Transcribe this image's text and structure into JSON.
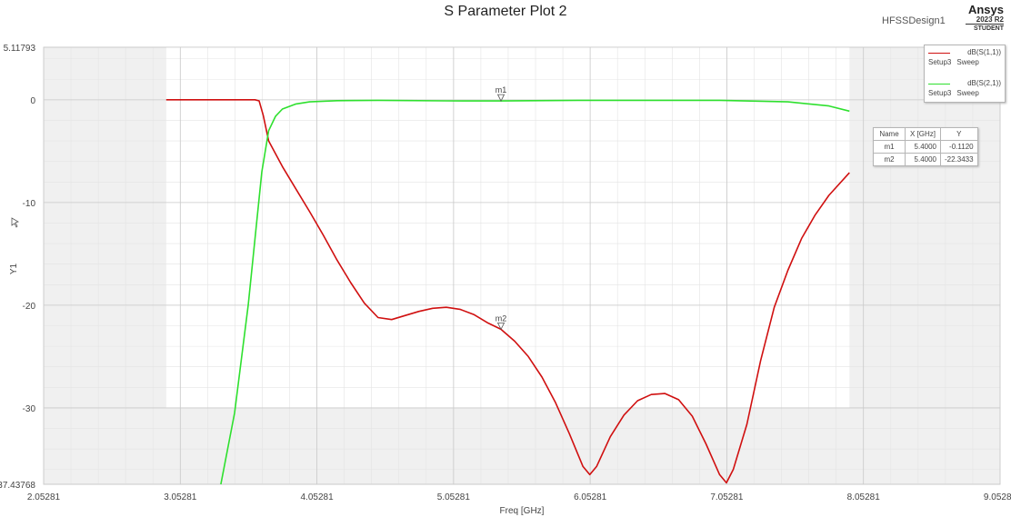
{
  "header": {
    "title": "S Parameter Plot 2",
    "design": "HFSSDesign1",
    "brand": "Ansys",
    "version": "2023 R2",
    "edition": "STUDENT"
  },
  "chart_data": {
    "type": "line",
    "title": "S Parameter Plot 2",
    "xlabel": "Freq [GHz]",
    "ylabel": "Y1",
    "xlim": [
      2.05281,
      9.05281
    ],
    "ylim": [
      -37.43768,
      5.11793
    ],
    "x_ticks": [
      "2.05281",
      "3.05281",
      "4.05281",
      "5.05281",
      "6.05281",
      "7.05281",
      "8.05281",
      "9.05281"
    ],
    "y_ticks": [
      "5.11793",
      "0",
      "-10",
      "-20",
      "-30",
      "-37.43768"
    ],
    "grid": true,
    "legend_position": "top-right",
    "series": [
      {
        "name": "dB(S(1,1))",
        "setup": "Setup3",
        "sweep": "Sweep",
        "color": "#d01010",
        "x": [
          2.95,
          3.2,
          3.4,
          3.6,
          3.63,
          3.66,
          3.7,
          3.8,
          3.9,
          4.0,
          4.1,
          4.2,
          4.3,
          4.4,
          4.5,
          4.6,
          4.7,
          4.8,
          4.9,
          5.0,
          5.1,
          5.2,
          5.3,
          5.4,
          5.5,
          5.6,
          5.7,
          5.8,
          5.9,
          6.0,
          6.05,
          6.1,
          6.2,
          6.3,
          6.4,
          6.5,
          6.6,
          6.7,
          6.8,
          6.9,
          7.0,
          7.05,
          7.1,
          7.2,
          7.3,
          7.4,
          7.5,
          7.6,
          7.7,
          7.8,
          7.95
        ],
        "y": [
          0,
          0,
          0,
          0,
          -0.1,
          -1.5,
          -4.0,
          -6.5,
          -8.7,
          -10.9,
          -13.2,
          -15.6,
          -17.8,
          -19.8,
          -21.2,
          -21.4,
          -21.0,
          -20.6,
          -20.3,
          -20.2,
          -20.4,
          -20.9,
          -21.7,
          -22.34,
          -23.5,
          -25.0,
          -27.0,
          -29.5,
          -32.5,
          -35.7,
          -36.5,
          -35.7,
          -32.8,
          -30.7,
          -29.3,
          -28.7,
          -28.6,
          -29.2,
          -30.8,
          -33.5,
          -36.5,
          -37.3,
          -36.0,
          -31.6,
          -25.4,
          -20.2,
          -16.6,
          -13.5,
          -11.2,
          -9.3,
          -7.1
        ]
      },
      {
        "name": "dB(S(2,1))",
        "setup": "Setup3",
        "sweep": "Sweep",
        "color": "#2ee02e",
        "x": [
          3.35,
          3.45,
          3.55,
          3.6,
          3.65,
          3.7,
          3.75,
          3.8,
          3.9,
          4.0,
          4.2,
          4.5,
          5.0,
          5.4,
          6.0,
          6.5,
          7.0,
          7.5,
          7.8,
          7.95
        ],
        "y": [
          -37.43768,
          -30.5,
          -20.0,
          -13.5,
          -7.0,
          -3.0,
          -1.6,
          -0.9,
          -0.4,
          -0.2,
          -0.08,
          -0.05,
          -0.1,
          -0.112,
          -0.05,
          -0.05,
          -0.05,
          -0.2,
          -0.6,
          -1.1
        ]
      }
    ],
    "markers": [
      {
        "name": "m1",
        "x": "5.4000",
        "y": "-0.1120",
        "xv": 5.4,
        "yv": -0.112
      },
      {
        "name": "m2",
        "x": "5.4000",
        "y": "-22.3433",
        "xv": 5.4,
        "yv": -22.3433
      }
    ],
    "marker_table_headers": [
      "Name",
      "X [GHz]",
      "Y"
    ]
  }
}
